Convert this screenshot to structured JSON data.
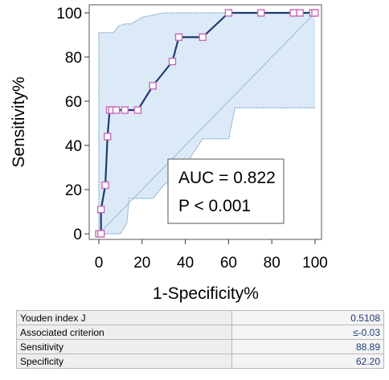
{
  "chart_data": {
    "type": "line",
    "xlabel": "1-Specificity%",
    "ylabel": "Sensitivity%",
    "xlim": [
      0,
      100
    ],
    "ylim": [
      0,
      100
    ],
    "xticks": [
      "0",
      "20",
      "40",
      "60",
      "80",
      "100"
    ],
    "yticks": [
      "0",
      "20",
      "40",
      "60",
      "80",
      "100"
    ],
    "grid": false,
    "series": [
      {
        "type": "line",
        "color": "#1f3a6e",
        "marker": "square",
        "marker_color": "#c76ab8",
        "x": [
          0,
          1,
          1,
          3,
          4,
          5,
          6,
          8,
          12,
          18,
          25,
          34,
          37,
          48,
          60,
          75,
          90,
          93,
          99,
          100
        ],
        "y": [
          0,
          0,
          11,
          22,
          44,
          56,
          56,
          56,
          56,
          56,
          67,
          78,
          89,
          89,
          100,
          100,
          100,
          100,
          100,
          100
        ]
      }
    ],
    "confidence_band": {
      "fill": "#dceaf8",
      "upper": {
        "x": [
          0,
          0,
          5,
          7,
          9,
          12,
          15,
          20,
          25,
          30,
          38,
          50,
          61,
          75,
          90,
          100
        ],
        "y": [
          0,
          91,
          91,
          91,
          94,
          95,
          95,
          98,
          99,
          100,
          100,
          100,
          100,
          100,
          100,
          100
        ]
      },
      "lower": {
        "x": [
          0,
          3,
          5,
          10,
          13,
          14,
          18,
          25,
          30,
          38,
          48,
          60,
          63,
          75,
          90,
          100
        ],
        "y": [
          0,
          0,
          0,
          0,
          5,
          16,
          16,
          16,
          22,
          28,
          43,
          43,
          57,
          57,
          57,
          57
        ]
      }
    },
    "reference_line": {
      "x": [
        0,
        100
      ],
      "y": [
        0,
        100
      ],
      "color": "#9cb6d2"
    },
    "annotations": {
      "auc": "AUC = 0.822",
      "p": "P < 0.001"
    }
  },
  "stats_table": [
    {
      "label": "Youden index J",
      "value": "0.5108"
    },
    {
      "label": "Associated criterion",
      "value": "≤-0.03"
    },
    {
      "label": "Sensitivity",
      "value": "88.89"
    },
    {
      "label": "Specificity",
      "value": "62.20"
    }
  ]
}
